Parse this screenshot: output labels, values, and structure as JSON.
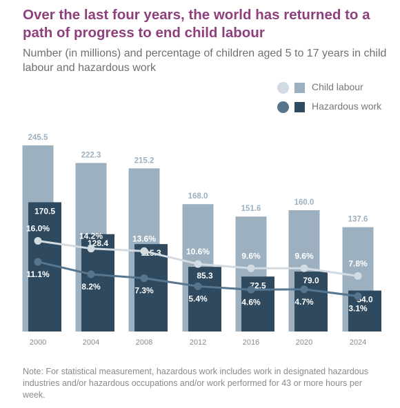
{
  "title": "Over the last four years, the world has returned to a path of progress to end child labour",
  "subtitle": "Number (in millions) and percentage of children aged 5 to 17 years in child labour and hazardous work",
  "note": "Note: For statistical measurement, hazardous work includes work in designated hazardous industries and/or hazardous occupations and/or work performed for 43 or more hours per week.",
  "legend": [
    {
      "label": "Child labour",
      "dot_color": "#d3dbe2",
      "square_color": "#9cb0c0"
    },
    {
      "label": "Hazardous work",
      "dot_color": "#56768f",
      "square_color": "#2f4a5e"
    }
  ],
  "chart_data": {
    "type": "bar",
    "categories": [
      "2000",
      "2004",
      "2008",
      "2012",
      "2016",
      "2020",
      "2024"
    ],
    "series": [
      {
        "name": "Child labour",
        "kind": "bar",
        "values": [
          245.5,
          222.3,
          215.2,
          168.0,
          151.6,
          160.0,
          137.6
        ],
        "labels": [
          "245.5",
          "222.3",
          "215.2",
          "168.0",
          "151.6",
          "160.0",
          "137.6"
        ],
        "color": "#9cb0c0"
      },
      {
        "name": "Hazardous work",
        "kind": "bar",
        "values": [
          170.5,
          128.4,
          115.3,
          85.3,
          72.5,
          79.0,
          54.0
        ],
        "labels": [
          "170.5",
          "128.4",
          "115.3",
          "85.3",
          "72.5",
          "79.0",
          "54.0"
        ],
        "color": "#2f4a5e"
      },
      {
        "name": "Child labour",
        "kind": "line",
        "values": [
          16.0,
          14.2,
          13.6,
          10.6,
          9.6,
          9.6,
          7.8
        ],
        "labels": [
          "16.0%",
          "14.2%",
          "13.6%",
          "10.6%",
          "9.6%",
          "9.6%",
          "7.8%"
        ],
        "color": "#d3dbe2"
      },
      {
        "name": "Hazardous work",
        "kind": "line",
        "values": [
          11.1,
          8.2,
          7.3,
          5.4,
          4.6,
          4.7,
          3.1
        ],
        "labels": [
          "11.1%",
          "8.2%",
          "7.3%",
          "5.4%",
          "4.6%",
          "4.7%",
          "3.1%"
        ],
        "color": "#56768f"
      }
    ],
    "ylabel": "",
    "xlabel": "",
    "grid": false,
    "legend_position": "top-right"
  }
}
